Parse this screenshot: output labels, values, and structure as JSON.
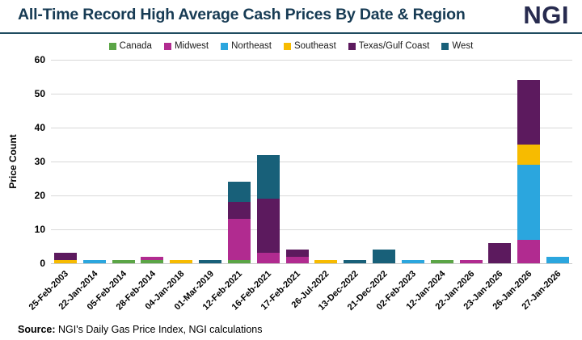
{
  "header": {
    "title": "All-Time Record High Average Cash Prices By Date & Region",
    "logo": "NGI"
  },
  "footer": {
    "source_label": "Source:",
    "source_text": " NGI's Daily Gas Price Index, NGI calculations"
  },
  "colors": {
    "title": "#173b54",
    "logo": "#272b4f",
    "divider": "#1f4c60",
    "grid": "#d8d8d8"
  },
  "chart_data": {
    "type": "bar",
    "stacked": true,
    "title": "All-Time Record High Average Cash Prices By Date & Region",
    "xlabel": "",
    "ylabel": "Price Count",
    "ylim": [
      0,
      60
    ],
    "ytick_step": 10,
    "grid": true,
    "legend_position": "top",
    "categories": [
      "25-Feb-2003",
      "22-Jan-2014",
      "05-Feb-2014",
      "28-Feb-2014",
      "04-Jan-2018",
      "01-Mar-2019",
      "12-Feb-2021",
      "16-Feb-2021",
      "17-Feb-2021",
      "26-Jul-2022",
      "13-Dec-2022",
      "21-Dec-2022",
      "02-Feb-2023",
      "12-Jan-2024",
      "22-Jan-2026",
      "23-Jan-2026",
      "26-Jan-2026",
      "27-Jan-2026"
    ],
    "series": [
      {
        "name": "Canada",
        "color": "#5ba546",
        "values": [
          0,
          0,
          1,
          1,
          0,
          0,
          1,
          0,
          0,
          0,
          0,
          0,
          0,
          1,
          0,
          0,
          0,
          0
        ]
      },
      {
        "name": "Midwest",
        "color": "#b12b90",
        "values": [
          0,
          0,
          0,
          1,
          0,
          0,
          12,
          3,
          2,
          0,
          0,
          0,
          0,
          0,
          1,
          0,
          7,
          0
        ]
      },
      {
        "name": "Northeast",
        "color": "#2ba6de",
        "values": [
          0,
          1,
          0,
          0,
          0,
          0,
          0,
          0,
          0,
          0,
          0,
          0,
          1,
          0,
          0,
          0,
          22,
          2
        ]
      },
      {
        "name": "Southeast",
        "color": "#f7bb00",
        "values": [
          1,
          0,
          0,
          0,
          1,
          0,
          0,
          0,
          0,
          1,
          0,
          0,
          0,
          0,
          0,
          0,
          6,
          0
        ]
      },
      {
        "name": "Texas/Gulf Coast",
        "color": "#5c1a5e",
        "values": [
          2,
          0,
          0,
          0,
          0,
          0,
          5,
          16,
          2,
          0,
          0,
          0,
          0,
          0,
          0,
          6,
          19,
          0
        ]
      },
      {
        "name": "West",
        "color": "#186079",
        "values": [
          0,
          0,
          0,
          0,
          0,
          1,
          6,
          13,
          0,
          0,
          1,
          4,
          0,
          0,
          0,
          0,
          0,
          0
        ]
      }
    ]
  }
}
